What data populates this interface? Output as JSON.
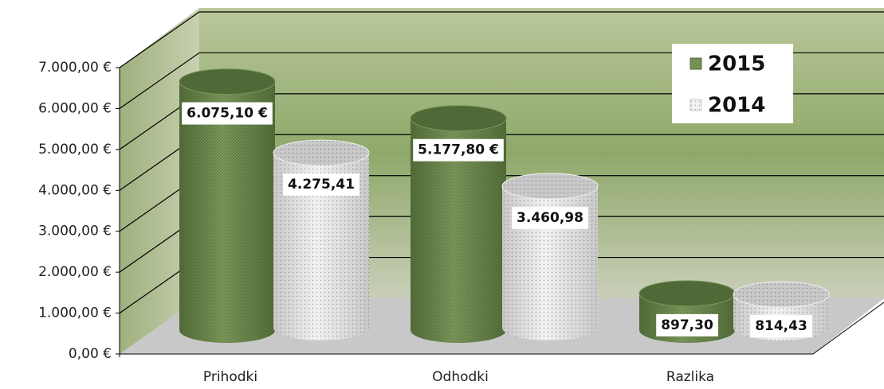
{
  "chart_data": {
    "type": "cylinder-bar",
    "categories": [
      "Prihodki",
      "Odhodki",
      "Razlika"
    ],
    "series": [
      {
        "name": "2015",
        "color": "#7d9a5c",
        "values": [
          6075.1,
          5177.8,
          897.3
        ],
        "value_labels": [
          "6.075,10 €",
          "5.177,80 €",
          "897,30"
        ]
      },
      {
        "name": "2014",
        "color": "#f2f2f2",
        "values": [
          4275.41,
          3460.98,
          814.43
        ],
        "value_labels": [
          "4.275,41",
          "3.460,98",
          "814,43"
        ]
      }
    ],
    "ylim": [
      0,
      7000
    ],
    "yticks": [
      {
        "value": 0,
        "label": "0,00 €"
      },
      {
        "value": 1000,
        "label": "1.000,00 €"
      },
      {
        "value": 2000,
        "label": "2.000,00 €"
      },
      {
        "value": 3000,
        "label": "3.000,00 €"
      },
      {
        "value": 4000,
        "label": "4.000,00 €"
      },
      {
        "value": 5000,
        "label": "5.000,00 €"
      },
      {
        "value": 6000,
        "label": "6.000,00 €"
      },
      {
        "value": 7000,
        "label": "7.000,00 €"
      }
    ],
    "grid": true,
    "legend": "top-right"
  }
}
